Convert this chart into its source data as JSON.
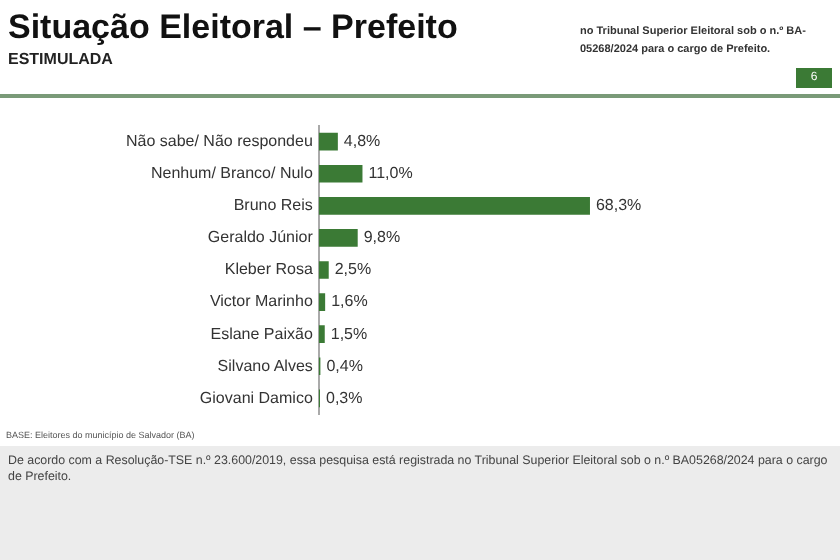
{
  "chart_data": {
    "type": "bar",
    "orientation": "horizontal",
    "title": "Situação Eleitoral – Prefeito",
    "subtitle": "ESTIMULADA",
    "categories": [
      "Não sabe/ Não respondeu",
      "Nenhum/ Branco/ Nulo",
      "Bruno Reis",
      "Geraldo Júnior",
      "Kleber Rosa",
      "Victor Marinho",
      "Eslane Paixão",
      "Silvano Alves",
      "Giovani Damico"
    ],
    "values": [
      4.8,
      11.0,
      68.3,
      9.8,
      2.5,
      1.6,
      1.5,
      0.4,
      0.3
    ],
    "value_labels": [
      "4,8%",
      "11,0%",
      "68,3%",
      "9,8%",
      "2,5%",
      "1,6%",
      "1,5%",
      "0,4%",
      "0,3%"
    ],
    "color": "#3b7a35",
    "legend": false,
    "annotations": [
      "no Tribunal Superior Eleitoral sob o n.º BA-05268/2024 para o cargo de Prefeito.",
      "6",
      "BASE: Eleitores do município de Salvador (BA)",
      "De acordo com a Resolução-TSE n.º 23.600/2019, essa pesquisa está registrada no Tribunal Superior Eleitoral sob o n.º BA05268/2024 para o cargo de Prefeito."
    ]
  }
}
